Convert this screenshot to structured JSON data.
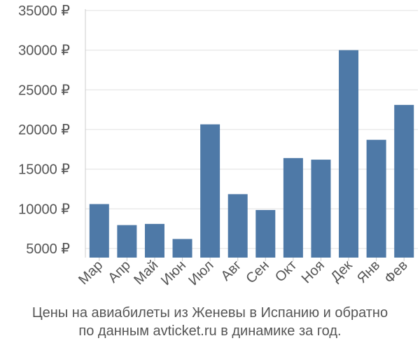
{
  "chart_data": {
    "type": "bar",
    "categories": [
      "Мар",
      "Апр",
      "Май",
      "Июн",
      "Июл",
      "Авг",
      "Сен",
      "Окт",
      "Ноя",
      "Дек",
      "Янв",
      "Фев"
    ],
    "values": [
      10600,
      7950,
      8100,
      6200,
      20650,
      11850,
      9850,
      16400,
      16200,
      30000,
      18700,
      23100
    ],
    "ylim": [
      4000,
      35000
    ],
    "yticks": [
      5000,
      10000,
      15000,
      20000,
      25000,
      30000,
      35000
    ],
    "ytick_labels": [
      "5000 ₽",
      "10000 ₽",
      "15000 ₽",
      "20000 ₽",
      "25000 ₽",
      "30000 ₽",
      "35000 ₽"
    ],
    "grid": true,
    "bar_color": "#4e79a7",
    "grid_color": "#e0e0e0"
  },
  "caption": {
    "line1": "Цены на авиабилеты из Женевы в Испанию и обратно",
    "line2": "по данным avticket.ru в динамике за год."
  }
}
